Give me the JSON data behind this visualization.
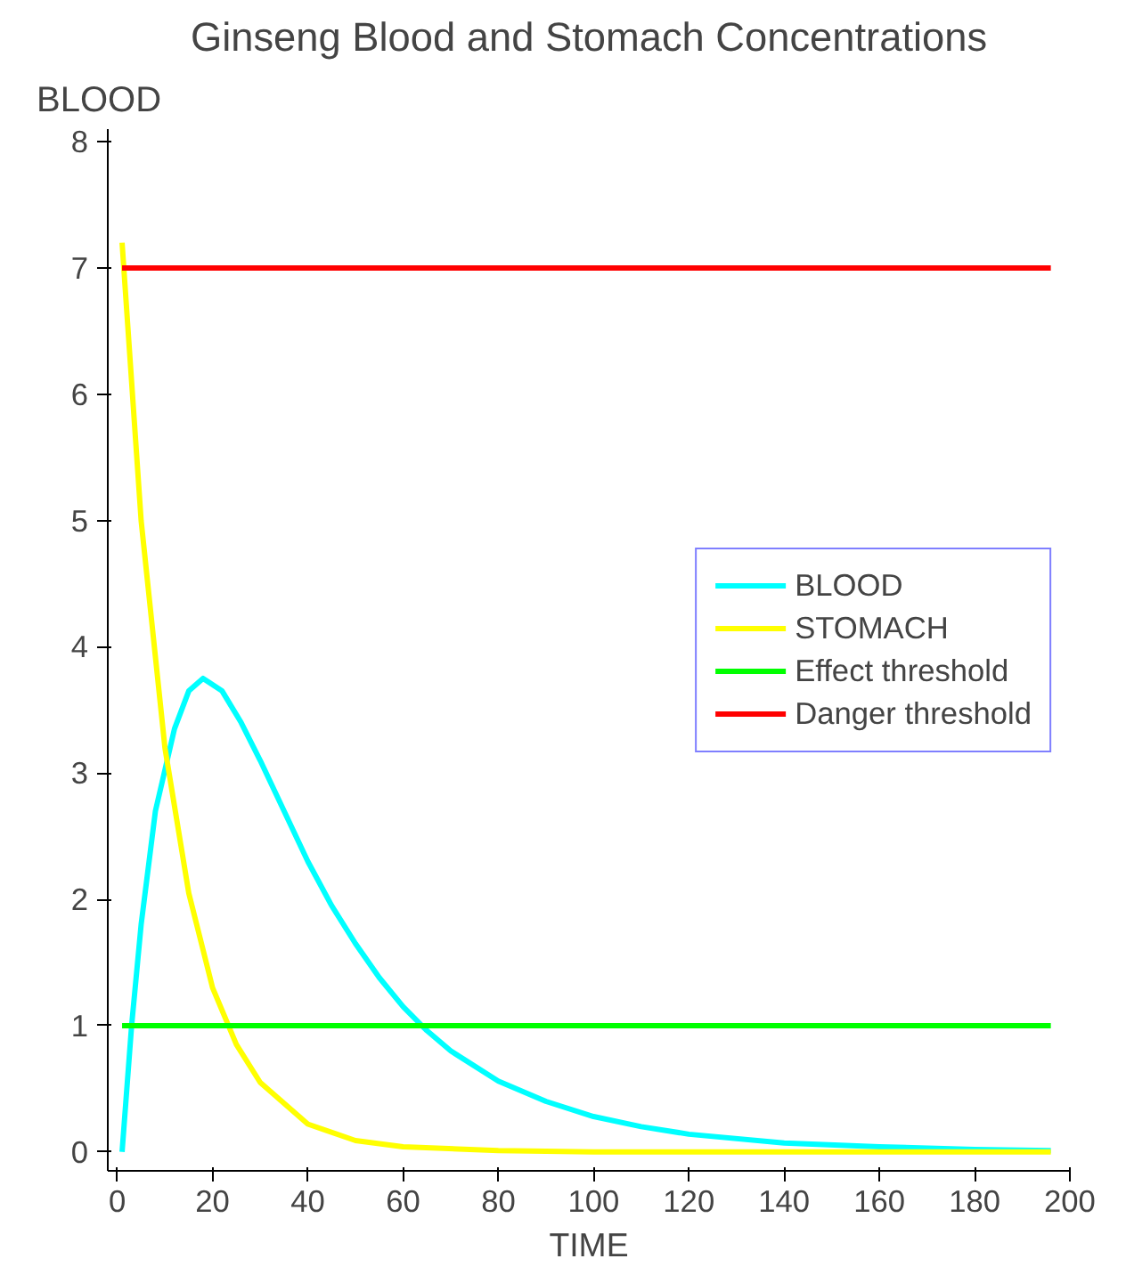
{
  "chart_data": {
    "type": "line",
    "title": "Ginseng Blood and Stomach Concentrations",
    "xlabel": "TIME",
    "ylabel": "BLOOD",
    "xlim": [
      -2,
      200
    ],
    "xticks": [
      0,
      20,
      40,
      60,
      80,
      100,
      120,
      140,
      160,
      180,
      200
    ],
    "ylim": [
      -0.15,
      8.1
    ],
    "yticks": [
      0,
      1,
      2,
      3,
      4,
      5,
      6,
      7,
      8
    ],
    "legend": "right",
    "series": [
      {
        "name": "BLOOD",
        "color": "#00ffff",
        "x": [
          1,
          3,
          5,
          8,
          12,
          15,
          18,
          22,
          26,
          30,
          35,
          40,
          45,
          50,
          55,
          60,
          65,
          70,
          80,
          90,
          100,
          110,
          120,
          140,
          160,
          180,
          196
        ],
        "values": [
          0,
          1.0,
          1.8,
          2.7,
          3.35,
          3.65,
          3.75,
          3.65,
          3.4,
          3.1,
          2.7,
          2.3,
          1.95,
          1.65,
          1.38,
          1.15,
          0.96,
          0.8,
          0.56,
          0.4,
          0.28,
          0.2,
          0.14,
          0.07,
          0.04,
          0.02,
          0.01
        ]
      },
      {
        "name": "STOMACH",
        "color": "#ffff00",
        "x": [
          1,
          5,
          10,
          15,
          20,
          25,
          30,
          40,
          50,
          60,
          80,
          100,
          196
        ],
        "values": [
          7.2,
          5.0,
          3.2,
          2.05,
          1.3,
          0.85,
          0.55,
          0.22,
          0.09,
          0.04,
          0.01,
          0,
          0
        ]
      },
      {
        "name": "Effect threshold",
        "color": "#00ff00",
        "x": [
          1,
          196
        ],
        "values": [
          1,
          1
        ]
      },
      {
        "name": "Danger threshold",
        "color": "#ff0000",
        "x": [
          1,
          196
        ],
        "values": [
          7,
          7
        ]
      }
    ]
  }
}
